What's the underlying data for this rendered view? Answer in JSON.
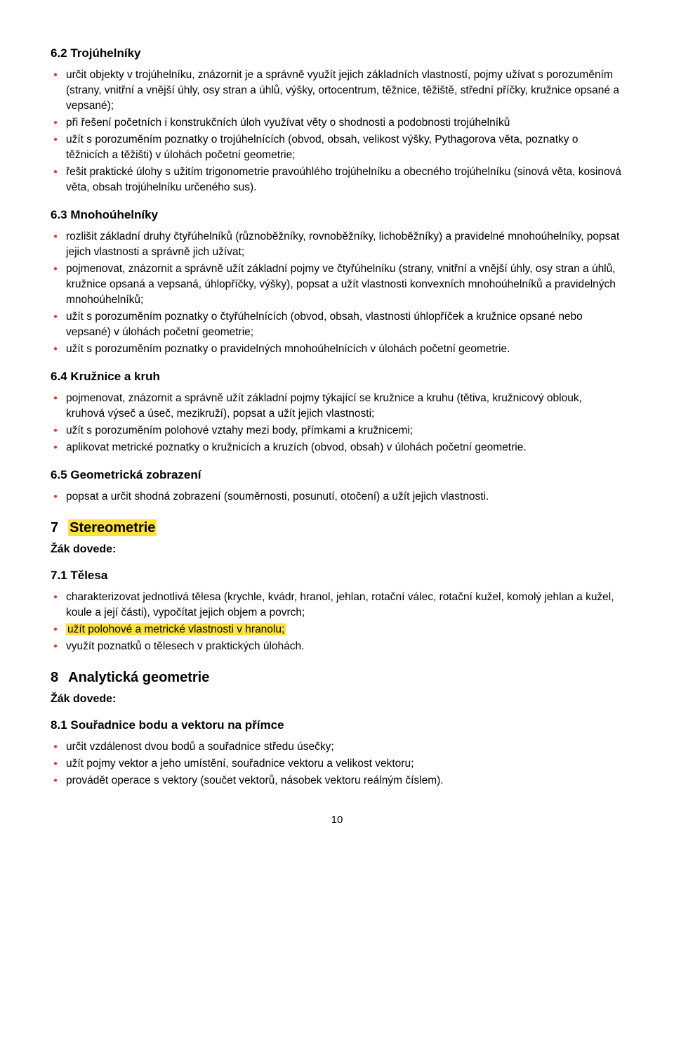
{
  "colors": {
    "bullet": "#e23b2e",
    "highlight": "#ffe23f",
    "text": "#000000",
    "background": "#ffffff"
  },
  "typography": {
    "body_fontsize": 15.5,
    "section_heading_fontsize": 17,
    "chapter_heading_fontsize": 20,
    "subheading_fontsize": 16,
    "font_family": "Arial"
  },
  "sections": {
    "s62": {
      "heading": "6.2  Trojúhelníky",
      "items": [
        "určit objekty v trojúhelníku, znázornit je a správně využít jejich základních vlastností, pojmy užívat s porozuměním (strany, vnitřní a vnější úhly, osy stran a úhlů, výšky, ortocentrum, těžnice, těžiště, střední příčky, kružnice opsané a vepsané);",
        "při řešení početních i konstrukčních úloh využívat věty o shodnosti a podobnosti trojúhelníků",
        "užít s porozuměním poznatky o trojúhelnících (obvod, obsah, velikost výšky, Pythagorova věta, poznatky o těžnicích a těžišti) v úlohách početní geometrie;",
        "řešit praktické úlohy s užitím trigonometrie pravoúhlého trojúhelníku a obecného trojúhelníku (sinová věta, kosinová věta, obsah trojúhelníku určeného sus)."
      ]
    },
    "s63": {
      "heading": "6.3  Mnohoúhelníky",
      "items": [
        "rozlišit základní druhy čtyřúhelníků (různoběžníky, rovnoběžníky, lichoběžníky) a pravidelné mnohoúhelníky, popsat jejich vlastnosti a správně jich užívat;",
        "pojmenovat, znázornit a správně užít základní pojmy ve čtyřúhelníku (strany, vnitřní a vnější úhly, osy stran a úhlů, kružnice opsaná a vepsaná, úhlopříčky, výšky), popsat a užít vlastnosti konvexních mnohoúhelníků a pravidelných mnohoúhelníků;",
        "užít s porozuměním poznatky o čtyřúhelnících (obvod, obsah, vlastnosti úhlopříček a kružnice opsané nebo vepsané) v úlohách početní geometrie;",
        "užít s porozuměním poznatky o pravidelných mnohoúhelnících v úlohách početní geometrie."
      ]
    },
    "s64": {
      "heading": "6.4  Kružnice a kruh",
      "items": [
        "pojmenovat, znázornit a správně užít základní pojmy týkající se kružnice a kruhu (tětiva, kružnicový oblouk, kruhová výseč a úseč, mezikruží), popsat a užít jejich vlastnosti;",
        "užít s porozuměním polohové vztahy mezi body, přímkami a kružnicemi;",
        "aplikovat metrické poznatky o kružnicích a kruzích (obvod, obsah) v úlohách početní geometrie."
      ]
    },
    "s65": {
      "heading": "6.5  Geometrická zobrazení",
      "items": [
        "popsat a určit shodná zobrazení (souměrnosti, posunutí, otočení) a užít jejich vlastnosti."
      ]
    },
    "ch7": {
      "num": "7",
      "title": "Stereometrie",
      "sub": "Žák dovede:"
    },
    "s71": {
      "heading": "7.1    Tělesa",
      "items_pre": "charakterizovat jednotlivá tělesa (krychle, kvádr, hranol, jehlan, rotační válec, rotační kužel, komolý jehlan a kužel, koule a její části), vypočítat jejich objem a povrch;",
      "item_hl": "užít polohové a metrické vlastnosti v hranolu;",
      "item_post": "využít poznatků o tělesech v praktických úlohách."
    },
    "ch8": {
      "num": "8",
      "title": "Analytická geometrie",
      "sub": "Žák dovede:"
    },
    "s81": {
      "heading": "8.1  Souřadnice bodu a vektoru na přímce",
      "items": [
        "určit vzdálenost dvou bodů a souřadnice středu úsečky;",
        "užít pojmy vektor a jeho umístění, souřadnice vektoru a velikost vektoru;",
        "provádět operace s vektory (součet vektorů, násobek vektoru reálným číslem)."
      ]
    }
  },
  "page_number": "10"
}
